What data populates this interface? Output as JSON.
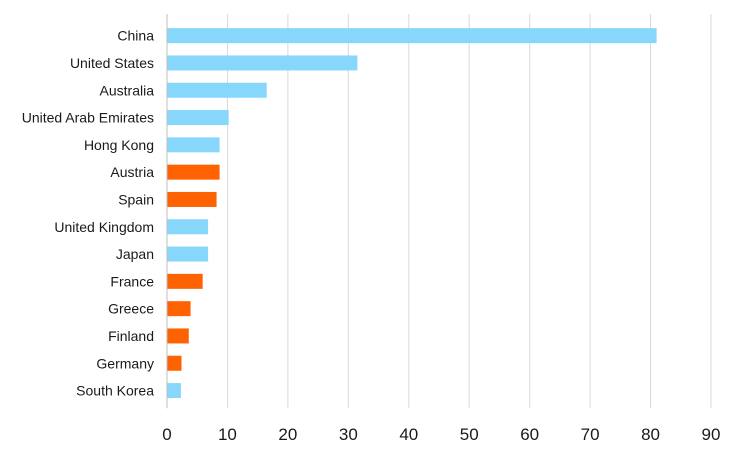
{
  "chart_data": {
    "type": "bar",
    "orientation": "horizontal",
    "categories": [
      "China",
      "United States",
      "Australia",
      "United Arab Emirates",
      "Hong Kong",
      "Austria",
      "Spain",
      "United Kingdom",
      "Japan",
      "France",
      "Greece",
      "Finland",
      "Germany",
      "South Korea"
    ],
    "values": [
      81,
      31.5,
      16.5,
      10.2,
      8.7,
      8.7,
      8.2,
      6.8,
      6.8,
      5.9,
      3.9,
      3.6,
      2.4,
      2.3
    ],
    "colors": [
      "#87d7fc",
      "#87d7fc",
      "#87d7fc",
      "#87d7fc",
      "#87d7fc",
      "#ff6200",
      "#ff6200",
      "#87d7fc",
      "#87d7fc",
      "#ff6200",
      "#ff6200",
      "#ff6200",
      "#ff6200",
      "#87d7fc"
    ],
    "xlim": [
      0,
      90
    ],
    "xticks": [
      0,
      10,
      20,
      30,
      40,
      50,
      60,
      70,
      80,
      90
    ],
    "grid": "vertical",
    "title": "",
    "xlabel": "",
    "ylabel": ""
  }
}
